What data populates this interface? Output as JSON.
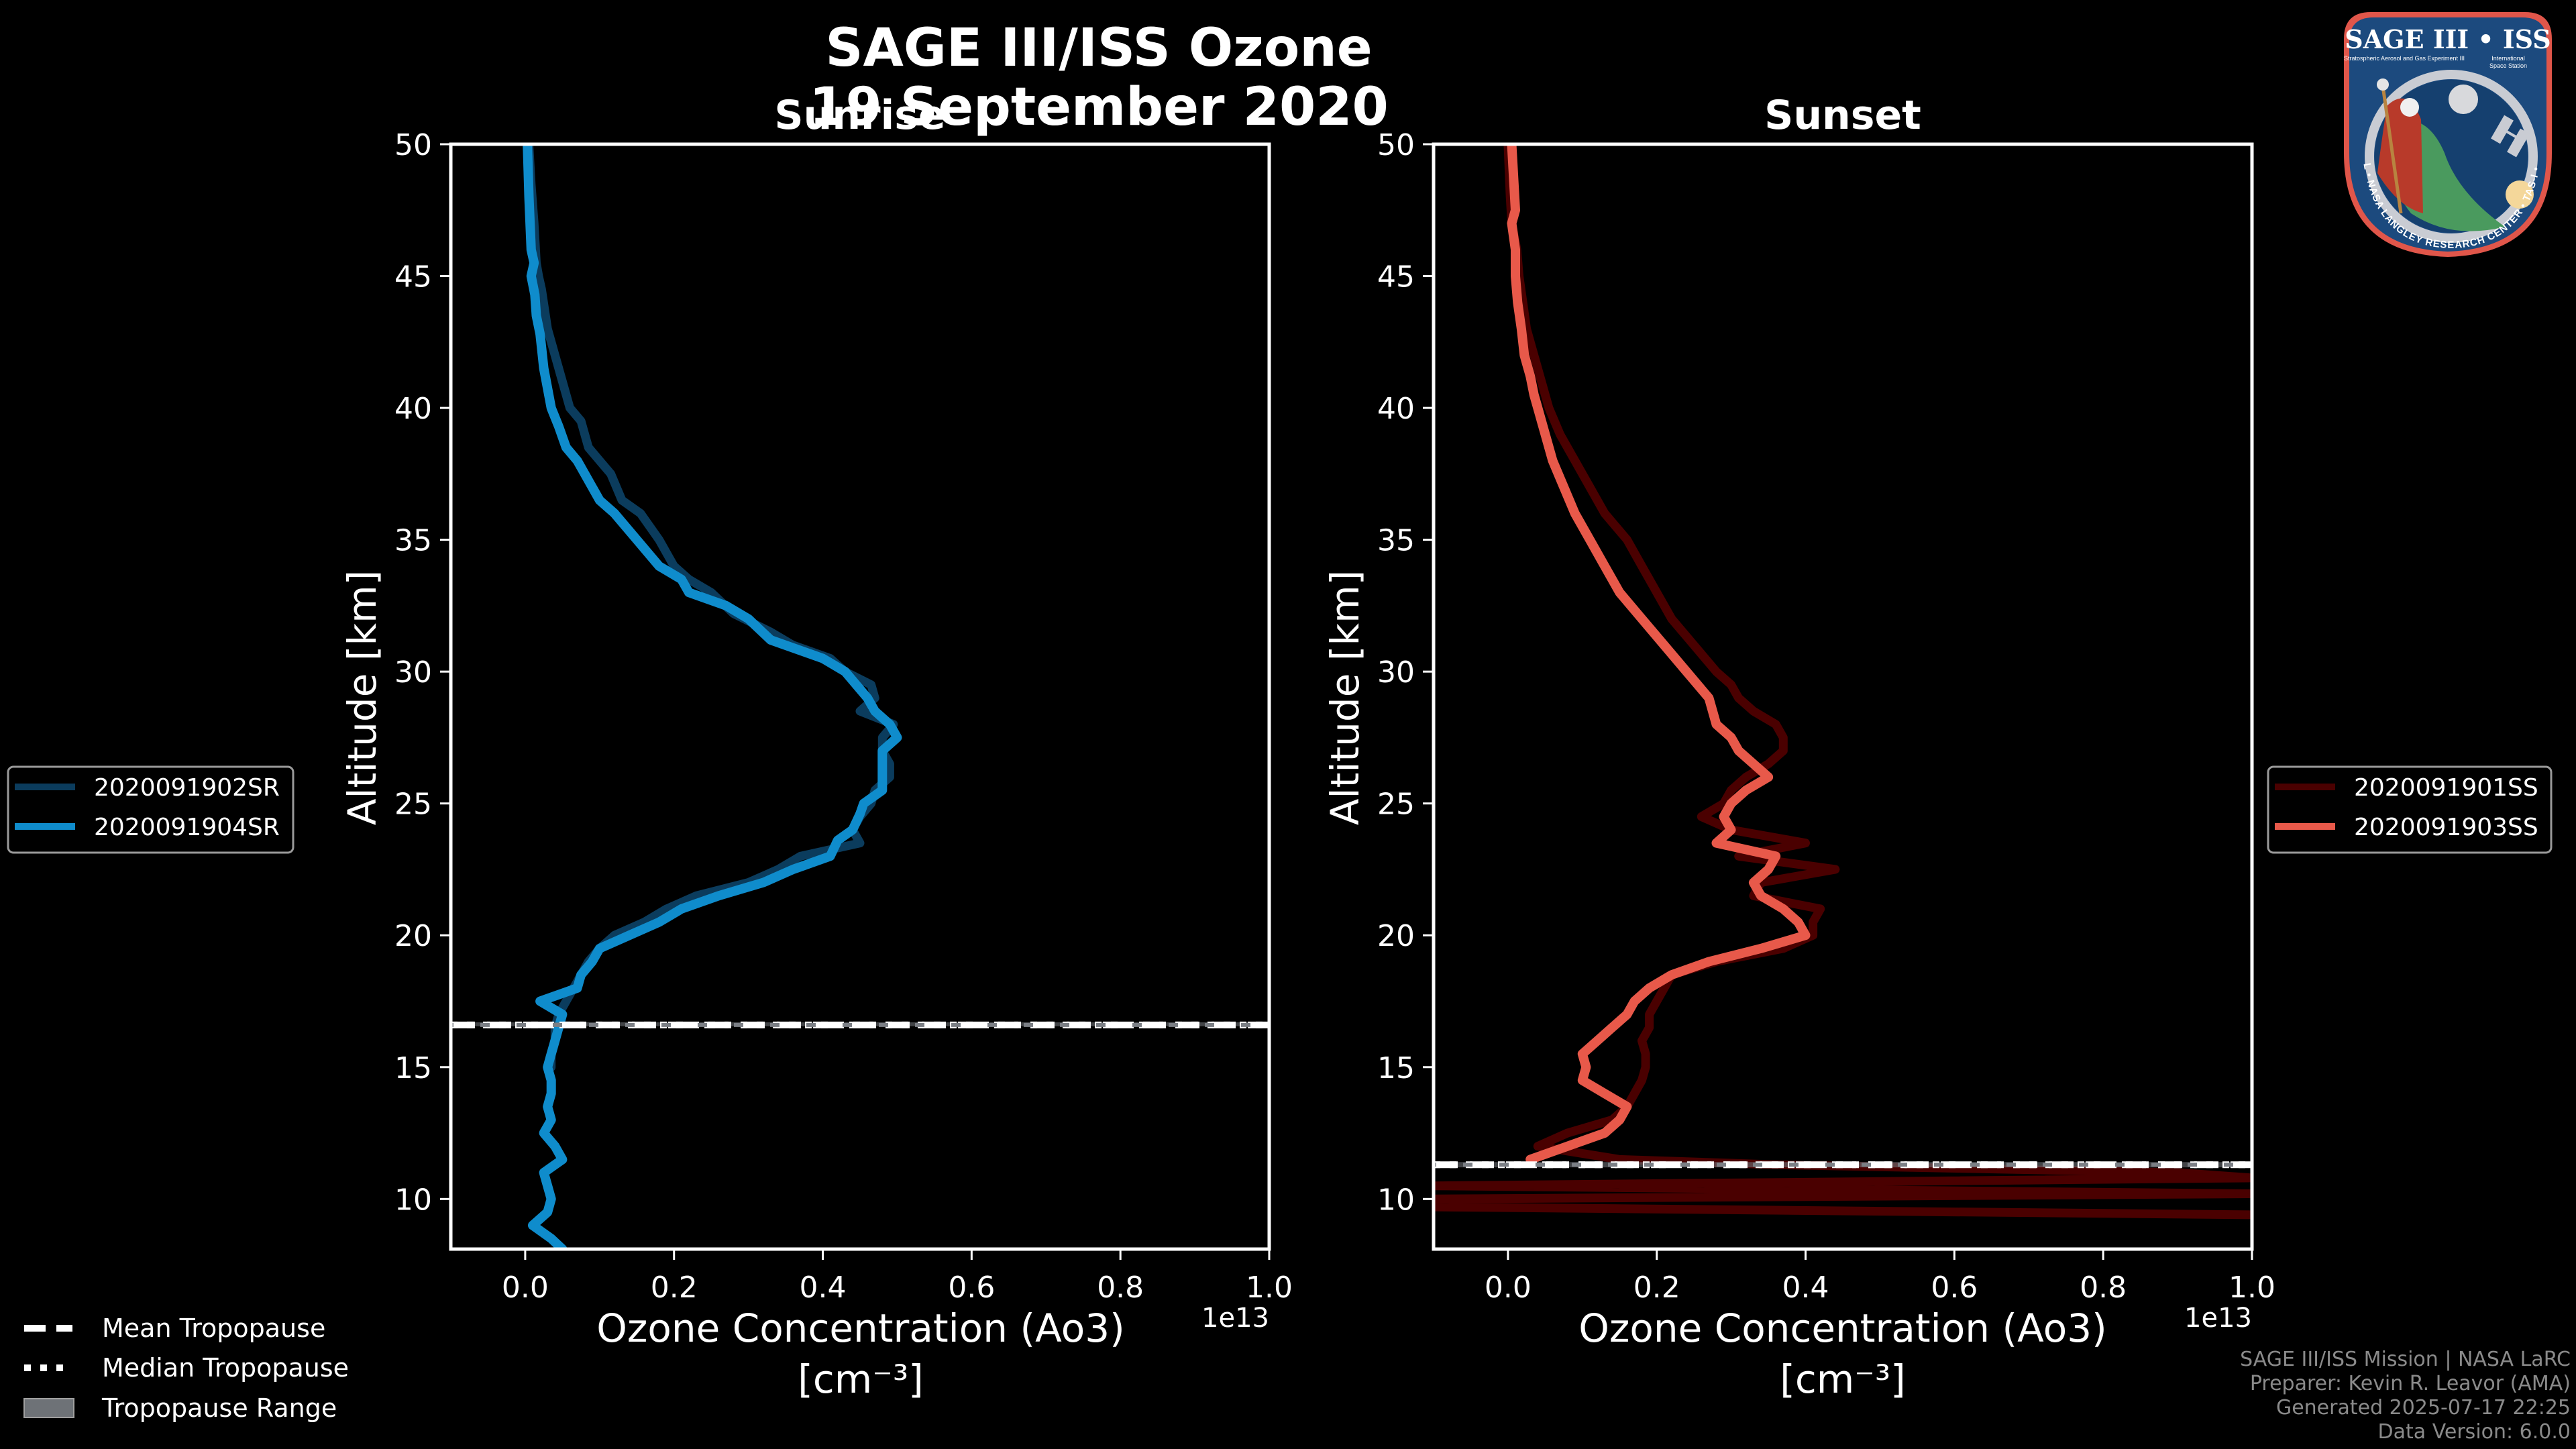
{
  "figure": {
    "title_line1": "SAGE III/ISS Ozone",
    "title_line2": "19 September 2020",
    "background": "#000000"
  },
  "logo": {
    "title": "SAGE III • ISS",
    "subtitle_left": "Stratospheric Aerosol and Gas Experiment III",
    "subtitle_right_1": "International",
    "subtitle_right_2": "Space Station",
    "ring_text": "BALL • NASA LANGLEY RESEARCH CENTER • TAS-I • ESA",
    "border_color": "#e0564a",
    "fill_color": "#1c4a7e"
  },
  "tropopause_legend": {
    "items": [
      {
        "label": "Mean Tropopause",
        "style": "dashed"
      },
      {
        "label": "Median Tropopause",
        "style": "dotted"
      },
      {
        "label": "Tropopause Range",
        "style": "patch"
      }
    ]
  },
  "footer": {
    "line1": "SAGE III/ISS Mission | NASA LaRC",
    "line2": "Preparer: Kevin R. Leavor (AMA)",
    "line3": "Generated 2025-07-17 22:25",
    "line4": "Data Version: 6.0.0"
  },
  "chart_data": [
    {
      "type": "line",
      "title": "Sunrise",
      "xlabel": "Ozone Concentration (Ao3)",
      "xlabel_units": "[cm⁻³]",
      "x_offset_label": "1e13",
      "ylabel": "Altitude [km]",
      "xlim": [
        -0.1,
        1.0
      ],
      "ylim": [
        8.1,
        50
      ],
      "x_scale": 10000000000000.0,
      "xticks": [
        "0.0",
        "0.2",
        "0.4",
        "0.6",
        "0.8",
        "1.0"
      ],
      "xtick_values": [
        0.0,
        0.2,
        0.4,
        0.6,
        0.8,
        1.0
      ],
      "yticks": [
        "10",
        "15",
        "20",
        "25",
        "30",
        "35",
        "40",
        "45",
        "50"
      ],
      "ytick_values": [
        10,
        15,
        20,
        25,
        30,
        35,
        40,
        45,
        50
      ],
      "legend_position": "left-outside",
      "tropopause": {
        "mean": 16.6,
        "median": 16.6,
        "range": [
          16.55,
          16.7
        ]
      },
      "series": [
        {
          "name": "2020091902SR",
          "color": "#0b3c5d",
          "altitude": [
            50,
            48.5,
            47,
            45.5,
            45,
            44.5,
            43,
            42,
            41,
            40,
            39.5,
            38.5,
            38,
            37.5,
            36.5,
            36,
            35,
            34,
            33.5,
            33,
            32.2,
            31.5,
            31,
            30.5,
            30,
            29.5,
            29,
            28.5,
            28,
            27.5,
            27,
            26.5,
            26,
            25.5,
            25,
            24.5,
            24,
            23.5,
            23,
            22.5,
            22,
            21.5,
            21,
            20.5,
            20,
            19.5,
            19,
            18.5,
            18,
            17.5,
            17,
            16.5,
            16,
            15.5,
            15
          ],
          "ozone": [
            0.005,
            0.008,
            0.012,
            0.015,
            0.018,
            0.022,
            0.03,
            0.04,
            0.05,
            0.06,
            0.075,
            0.085,
            0.1,
            0.115,
            0.13,
            0.155,
            0.18,
            0.2,
            0.22,
            0.25,
            0.28,
            0.33,
            0.36,
            0.41,
            0.43,
            0.465,
            0.47,
            0.45,
            0.495,
            0.48,
            0.48,
            0.49,
            0.49,
            0.47,
            0.465,
            0.45,
            0.44,
            0.45,
            0.37,
            0.34,
            0.3,
            0.23,
            0.19,
            0.16,
            0.12,
            0.1,
            0.085,
            0.075,
            0.065,
            0.055,
            0.045,
            0.04,
            0.04,
            0.035,
            0.035
          ]
        },
        {
          "name": "2020091904SR",
          "color": "#0f8ccc",
          "altitude": [
            50,
            48,
            46,
            45.5,
            45,
            44.3,
            43.5,
            42.8,
            41.5,
            40,
            39.3,
            38.5,
            38,
            37.5,
            36.5,
            36,
            35,
            34,
            33.5,
            33,
            32.5,
            32,
            31.2,
            30.5,
            30,
            29,
            28.5,
            28,
            27.5,
            27,
            26.5,
            26,
            25.5,
            25,
            24.6,
            24,
            23.6,
            23,
            22.5,
            22,
            21.5,
            21,
            20.5,
            20,
            19.5,
            19,
            18.5,
            18,
            17.5,
            17,
            16.5,
            16,
            15.5,
            15,
            14.5,
            14,
            13.5,
            13,
            12.5,
            12,
            11.5,
            11,
            10.5,
            10,
            9.5,
            9,
            8.5,
            8.1
          ],
          "ozone": [
            0.003,
            0.005,
            0.008,
            0.012,
            0.008,
            0.013,
            0.015,
            0.02,
            0.025,
            0.035,
            0.045,
            0.055,
            0.07,
            0.08,
            0.1,
            0.12,
            0.15,
            0.18,
            0.21,
            0.22,
            0.27,
            0.3,
            0.33,
            0.4,
            0.43,
            0.46,
            0.47,
            0.49,
            0.5,
            0.48,
            0.48,
            0.48,
            0.48,
            0.455,
            0.45,
            0.44,
            0.42,
            0.41,
            0.36,
            0.32,
            0.26,
            0.21,
            0.18,
            0.14,
            0.1,
            0.09,
            0.075,
            0.07,
            0.02,
            0.05,
            0.045,
            0.04,
            0.035,
            0.03,
            0.035,
            0.035,
            0.03,
            0.035,
            0.025,
            0.04,
            0.05,
            0.025,
            0.03,
            0.035,
            0.03,
            0.01,
            0.035,
            0.05
          ]
        }
      ]
    },
    {
      "type": "line",
      "title": "Sunset",
      "xlabel": "Ozone Concentration (Ao3)",
      "xlabel_units": "[cm⁻³]",
      "x_offset_label": "1e13",
      "ylabel": "Altitude [km]",
      "xlim": [
        -0.1,
        1.0
      ],
      "ylim": [
        8.1,
        50
      ],
      "x_scale": 10000000000000.0,
      "xticks": [
        "0.0",
        "0.2",
        "0.4",
        "0.6",
        "0.8",
        "1.0"
      ],
      "xtick_values": [
        0.0,
        0.2,
        0.4,
        0.6,
        0.8,
        1.0
      ],
      "yticks": [
        "10",
        "15",
        "20",
        "25",
        "30",
        "35",
        "40",
        "45",
        "50"
      ],
      "ytick_values": [
        10,
        15,
        20,
        25,
        30,
        35,
        40,
        45,
        50
      ],
      "legend_position": "right-outside",
      "tropopause": {
        "mean": 11.3,
        "median": 11.3,
        "range": [
          11.2,
          11.4
        ]
      },
      "series": [
        {
          "name": "2020091901SS",
          "color": "#4a0000",
          "altitude": [
            50,
            48,
            47,
            46,
            45,
            44,
            43,
            42,
            41,
            40,
            39,
            38,
            37,
            36,
            35,
            34,
            33,
            32,
            31,
            30,
            29.5,
            29,
            28.5,
            28,
            27.5,
            27,
            26.5,
            26,
            25.5,
            25,
            24.5,
            24,
            23.5,
            23,
            22.5,
            22,
            21.5,
            21,
            20.5,
            20,
            19.5,
            19,
            18.5,
            18,
            17.5,
            17,
            16.5,
            16,
            15.5,
            15,
            14.5,
            14,
            13.5,
            13,
            12.5,
            12,
            11.5,
            11.3,
            11,
            10.8,
            10.5,
            10.2,
            10,
            9.7,
            9.4
          ],
          "ozone": [
            0.0,
            0.003,
            0.005,
            0.012,
            0.015,
            0.02,
            0.025,
            0.035,
            0.045,
            0.055,
            0.07,
            0.09,
            0.11,
            0.13,
            0.16,
            0.18,
            0.2,
            0.22,
            0.25,
            0.28,
            0.3,
            0.31,
            0.33,
            0.36,
            0.37,
            0.37,
            0.35,
            0.32,
            0.3,
            0.29,
            0.26,
            0.3,
            0.4,
            0.31,
            0.44,
            0.34,
            0.33,
            0.42,
            0.41,
            0.41,
            0.37,
            0.28,
            0.22,
            0.21,
            0.2,
            0.19,
            0.19,
            0.18,
            0.185,
            0.185,
            0.18,
            0.17,
            0.16,
            0.14,
            0.08,
            0.04,
            0.15,
            0.36,
            0.9,
            1.0,
            -0.1,
            1.0,
            -0.1,
            -0.1,
            1.0
          ]
        },
        {
          "name": "2020091903SS",
          "color": "#e8594a",
          "altitude": [
            50,
            48.5,
            47.5,
            47,
            46,
            45,
            44,
            43,
            42,
            41.2,
            40.5,
            40,
            39,
            38,
            37,
            36,
            35,
            34,
            33,
            32,
            31,
            30,
            29,
            28,
            27.5,
            27,
            26.5,
            26,
            25.5,
            25,
            24.5,
            24,
            23.5,
            23,
            22.5,
            22,
            21.5,
            21,
            20.5,
            20,
            19.5,
            19,
            18.5,
            18,
            17.5,
            17,
            16.5,
            16,
            15.5,
            15,
            14.5,
            14,
            13.5,
            13,
            12.5,
            12,
            11.5
          ],
          "ozone": [
            0.005,
            0.008,
            0.01,
            0.005,
            0.01,
            0.01,
            0.013,
            0.018,
            0.022,
            0.03,
            0.035,
            0.04,
            0.05,
            0.06,
            0.075,
            0.09,
            0.11,
            0.13,
            0.15,
            0.18,
            0.21,
            0.24,
            0.27,
            0.28,
            0.3,
            0.31,
            0.33,
            0.35,
            0.32,
            0.3,
            0.29,
            0.3,
            0.28,
            0.36,
            0.35,
            0.33,
            0.34,
            0.37,
            0.39,
            0.4,
            0.34,
            0.27,
            0.22,
            0.19,
            0.17,
            0.16,
            0.14,
            0.12,
            0.1,
            0.105,
            0.1,
            0.13,
            0.16,
            0.15,
            0.13,
            0.08,
            0.03
          ]
        }
      ]
    }
  ]
}
